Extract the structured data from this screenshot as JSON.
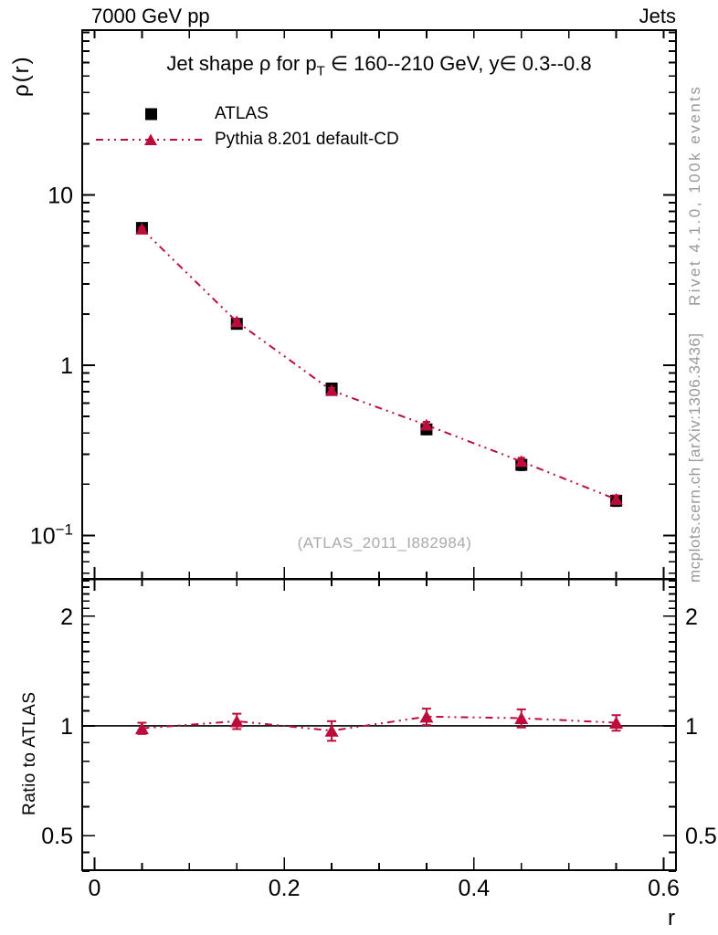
{
  "header": {
    "left": "7000 GeV pp",
    "right": "Jets"
  },
  "title": {
    "pre": "Jet shape ρ for p",
    "sub": "T",
    "post": " ∈ 160--210 GeV, y∈ 0.3--0.8"
  },
  "legend": [
    {
      "label": "ATLAS",
      "marker": "square",
      "color": "#000000"
    },
    {
      "label": "Pythia 8.201 default-CD",
      "marker": "triangle-dashdot-line",
      "color": "#bc0c3c"
    }
  ],
  "watermark": "(ATLAS_2011_I882984)",
  "side_notes": {
    "top": "Rivet 4.1.0,  100k events",
    "bottom": "mcplots.cern.ch [arXiv:1306.3436]"
  },
  "axes": {
    "xlabel": "r",
    "ylabel": "ρ(r)",
    "ratio_ylabel": "Ratio to ATLAS"
  },
  "colors": {
    "mc": "#bc0c3c",
    "data": "#000000",
    "frame": "#000000",
    "gray_text": "#999999",
    "watermark": "#ababab"
  },
  "chart_data": {
    "type": "line",
    "title": "Jet shape ρ for p_T ∈ 160--210 GeV, y ∈ 0.3--0.8",
    "xlabel": "r",
    "ylabel": "ρ(r)",
    "ratio_ylabel": "Ratio to ATLAS",
    "yscale": "log",
    "ratio_yscale": "log",
    "grid": false,
    "legend_position": "upper-left",
    "x": [
      0.05,
      0.15,
      0.25,
      0.35,
      0.45,
      0.55
    ],
    "series": [
      {
        "name": "ATLAS",
        "marker": "square",
        "color": "#000000",
        "line": false,
        "values": [
          6.4,
          1.75,
          0.73,
          0.42,
          0.26,
          0.16
        ],
        "errors": [
          0.25,
          0.07,
          0.03,
          0.027,
          0.018,
          0.011
        ]
      },
      {
        "name": "Pythia 8.201 default-CD",
        "marker": "triangle",
        "color": "#bc0c3c",
        "line": true,
        "linestyle": "dash-dot-dot",
        "values": [
          6.3,
          1.8,
          0.71,
          0.445,
          0.272,
          0.163
        ],
        "errors": [
          0.12,
          0.045,
          0.025,
          0.02,
          0.014,
          0.009
        ]
      }
    ],
    "ratio": {
      "name": "Pythia 8.201 default-CD / ATLAS",
      "values": [
        0.985,
        1.03,
        0.97,
        1.06,
        1.05,
        1.02
      ],
      "errors": [
        0.035,
        0.05,
        0.06,
        0.055,
        0.06,
        0.05
      ],
      "reference": 1.0
    },
    "xlim": [
      -0.013,
      0.613
    ],
    "ylim": [
      0.0556,
      92.9
    ],
    "ratio_ylim": [
      0.402,
      2.53
    ],
    "xticks": {
      "major": [
        0,
        0.2,
        0.4,
        0.6
      ],
      "labels": [
        "0",
        "0.2",
        "0.4",
        "0.6"
      ],
      "minor": [
        0.05,
        0.1,
        0.15,
        0.25,
        0.3,
        0.35,
        0.45,
        0.5,
        0.55
      ]
    },
    "yticks": {
      "major": [
        10,
        1,
        0.1
      ],
      "labels": [
        {
          "base": "10"
        },
        {
          "base": "1"
        },
        {
          "base": "10",
          "sup": "−1"
        }
      ],
      "minor": [
        90,
        80,
        70,
        60,
        50,
        40,
        30,
        20,
        9,
        8,
        7,
        6,
        5,
        4,
        3,
        2,
        0.9,
        0.8,
        0.7,
        0.6,
        0.5,
        0.4,
        0.3,
        0.2,
        0.09,
        0.08,
        0.07,
        0.06
      ]
    },
    "ratio_yticks": {
      "major": [
        2,
        1,
        0.5
      ],
      "labels": [
        "2",
        "1",
        "0.5"
      ],
      "minor": [
        2.5,
        2.4,
        2.3,
        2.2,
        2.1,
        1.9,
        1.8,
        1.7,
        1.6,
        1.5,
        1.4,
        1.3,
        1.2,
        1.1,
        0.9,
        0.8,
        0.7,
        0.6,
        0.45,
        0.4
      ]
    }
  }
}
